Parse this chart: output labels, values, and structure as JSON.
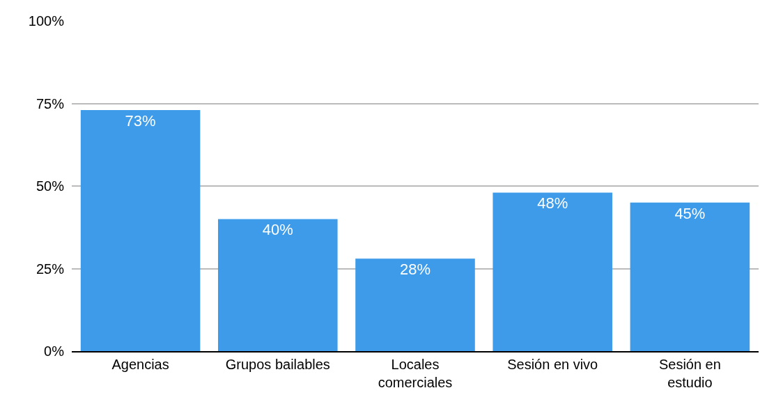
{
  "chart_data": {
    "type": "bar",
    "categories": [
      "Agencias",
      "Grupos bailables",
      "Locales comerciales",
      "Sesión en vivo",
      "Sesión en estudio"
    ],
    "values": [
      73,
      40,
      28,
      48,
      45
    ],
    "value_labels": [
      "73%",
      "40%",
      "28%",
      "48%",
      "45%"
    ],
    "color": "#3d9be9",
    "ylim": [
      0,
      100
    ],
    "yticks": [
      {
        "value": 0,
        "label": "0%"
      },
      {
        "value": 25,
        "label": "25%"
      },
      {
        "value": 50,
        "label": "50%"
      },
      {
        "value": 75,
        "label": "75%"
      },
      {
        "value": 100,
        "label": "100%"
      }
    ],
    "grid": "y",
    "legend": false
  }
}
